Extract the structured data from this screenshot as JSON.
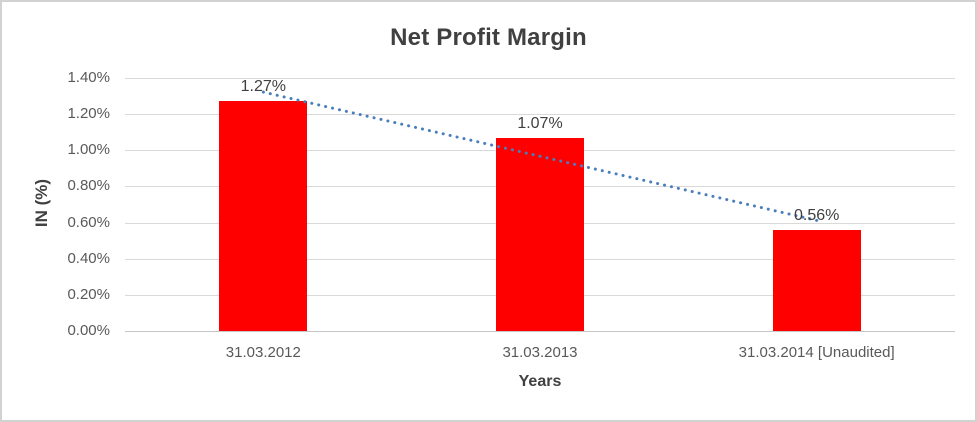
{
  "chart_data": {
    "type": "bar",
    "title": "Net Profit Margin",
    "xlabel": "Years",
    "ylabel": "IN (%)",
    "categories": [
      "31.03.2012",
      "31.03.2013",
      "31.03.2014 [Unaudited]"
    ],
    "values": [
      1.27,
      1.07,
      0.56
    ],
    "data_labels": [
      "1.27%",
      "1.07%",
      "0.56%"
    ],
    "y_ticks": [
      "0.00%",
      "0.20%",
      "0.40%",
      "0.60%",
      "0.80%",
      "1.00%",
      "1.20%",
      "1.40%"
    ],
    "ylim": [
      0,
      1.4
    ],
    "grid": true,
    "legend": "none",
    "bar_color": "#ff0000",
    "trendline": {
      "type": "linear",
      "style": "dotted",
      "color": "#4a7ebb",
      "start_value": 1.322,
      "end_value": 0.612
    },
    "text_colors": {
      "title": "#404040",
      "tick_labels": "#595959",
      "data_labels": "#404040"
    }
  }
}
